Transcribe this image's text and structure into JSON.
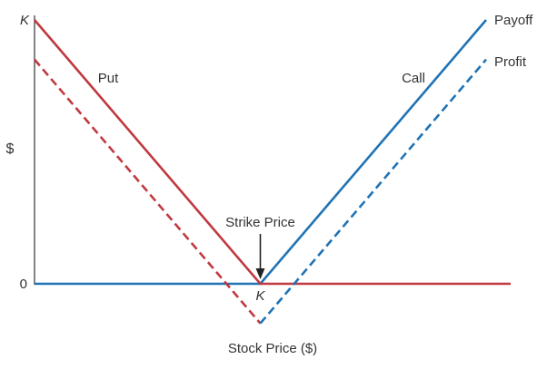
{
  "chart_data": {
    "type": "line",
    "title": "",
    "xlabel": "Stock Price ($)",
    "ylabel": "$",
    "xlim": [
      0,
      2
    ],
    "ylim": [
      -0.15,
      1
    ],
    "y_tick_labels": {
      "top": "K",
      "zero": "0"
    },
    "x_tick_labels": {
      "strike": "K"
    },
    "series": [
      {
        "name": "Put",
        "kind": "payoff",
        "x": [
          0,
          1,
          2
        ],
        "y": [
          1,
          0,
          0
        ]
      },
      {
        "name": "Put",
        "kind": "profit",
        "x": [
          0,
          1
        ],
        "y": [
          0.85,
          -0.15
        ]
      },
      {
        "name": "Call",
        "kind": "payoff",
        "x": [
          0,
          1,
          2
        ],
        "y": [
          0,
          0,
          1
        ]
      },
      {
        "name": "Call",
        "kind": "profit",
        "x": [
          1,
          2
        ],
        "y": [
          -0.15,
          0.85
        ]
      }
    ],
    "annotations": {
      "strike_label": "Strike Price",
      "strike_x": 1,
      "payoff_label": "Payoff",
      "profit_label": "Profit",
      "put_label": "Put",
      "call_label": "Call"
    },
    "colors": {
      "put": "#c0393f",
      "call": "#1f73b5",
      "axis": "#333333"
    },
    "grid": false,
    "legend": "none"
  }
}
